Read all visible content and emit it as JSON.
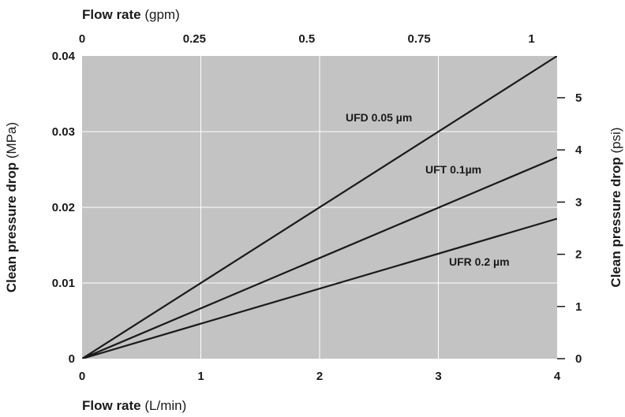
{
  "chart_data": {
    "type": "line",
    "x_axis_bottom": {
      "title_bold": "Flow rate",
      "title_unit": "(L/min)",
      "range": [
        0,
        4
      ],
      "ticks": [
        0,
        1,
        2,
        3,
        4
      ],
      "tick_labels": [
        "0",
        "1",
        "2",
        "3",
        "4"
      ]
    },
    "x_axis_top": {
      "title_bold": "Flow rate",
      "title_unit": "(gpm)",
      "range": [
        0,
        1.057
      ],
      "ticks": [
        0,
        0.25,
        0.5,
        0.75,
        1
      ],
      "tick_labels": [
        "0",
        "0.25",
        "0.5",
        "0.75",
        "1"
      ]
    },
    "y_axis_left": {
      "title_bold": "Clean pressure drop",
      "title_unit": "(MPa)",
      "range": [
        0,
        0.04
      ],
      "ticks": [
        0,
        0.01,
        0.02,
        0.03,
        0.04
      ],
      "tick_labels": [
        "0",
        "0.01",
        "0.02",
        "0.03",
        "0.04"
      ]
    },
    "y_axis_right": {
      "title_bold": "Clean pressure drop",
      "title_unit": "(psi)",
      "range": [
        0,
        5.8
      ],
      "ticks": [
        0,
        1,
        2,
        3,
        4,
        5
      ],
      "tick_labels": [
        "0",
        "1",
        "2",
        "3",
        "4",
        "5"
      ]
    },
    "grid": true,
    "plot_background": "#c3c3c3",
    "line_color": "#1a1a1a",
    "series": [
      {
        "name": "UFD 0.05 µm",
        "x": [
          0,
          4
        ],
        "y": [
          0,
          0.04
        ]
      },
      {
        "name": "UFT 0.1µm",
        "x": [
          0,
          4
        ],
        "y": [
          0,
          0.0266
        ]
      },
      {
        "name": "UFR 0.2 µm",
        "x": [
          0,
          4
        ],
        "y": [
          0,
          0.0185
        ]
      }
    ]
  }
}
